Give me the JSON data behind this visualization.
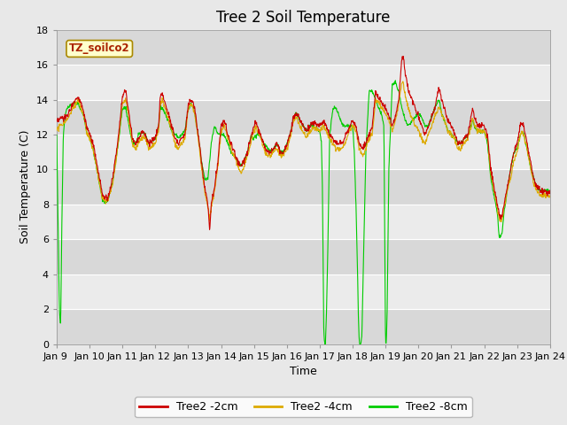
{
  "title": "Tree 2 Soil Temperature",
  "xlabel": "Time",
  "ylabel": "Soil Temperature (C)",
  "ylim": [
    0,
    18
  ],
  "xlim": [
    0,
    15
  ],
  "annotation": "TZ_soilco2",
  "legend": [
    "Tree2 -2cm",
    "Tree2 -4cm",
    "Tree2 -8cm"
  ],
  "colors": {
    "2cm": "#cc0000",
    "4cm": "#ddaa00",
    "8cm": "#00cc00"
  },
  "xtick_labels": [
    "Jan 9 ",
    "Jan 10",
    "Jan 11",
    "Jan 12",
    "Jan 13",
    "Jan 14",
    "Jan 15",
    "Jan 16",
    "Jan 17",
    "Jan 18",
    "Jan 19",
    "Jan 20",
    "Jan 21",
    "Jan 22",
    "Jan 23",
    "Jan 24"
  ],
  "ytick_labels": [
    0,
    2,
    4,
    6,
    8,
    10,
    12,
    14,
    16,
    18
  ],
  "fig_bg": "#e8e8e8",
  "band_light": "#ebebeb",
  "band_dark": "#d8d8d8",
  "grid_color": "#ffffff",
  "title_fontsize": 12,
  "label_fontsize": 9,
  "tick_fontsize": 8
}
